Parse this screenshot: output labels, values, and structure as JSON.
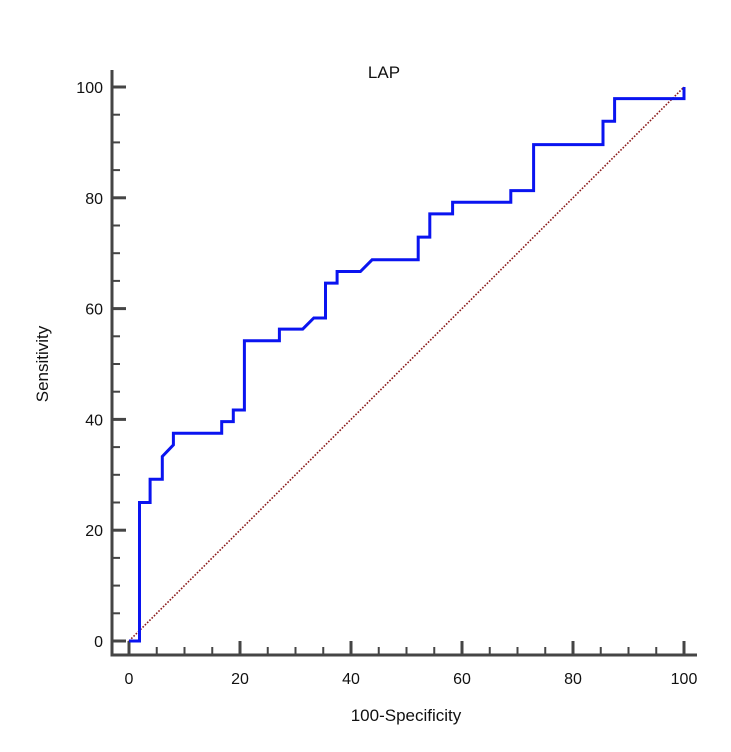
{
  "chart_data": {
    "type": "line",
    "title": "LAP",
    "xlabel": "100-Specificity",
    "ylabel": "Sensitivity",
    "xlim": [
      0,
      100
    ],
    "ylim": [
      0,
      100
    ],
    "xticks": [
      0,
      20,
      40,
      60,
      80,
      100
    ],
    "yticks": [
      0,
      20,
      40,
      60,
      80,
      100
    ],
    "minor_tick_step": 5,
    "grid": false,
    "series": [
      {
        "color": "#0a14f0",
        "style": "solid",
        "points": [
          [
            0,
            0
          ],
          [
            1.9,
            0
          ],
          [
            1.9,
            25
          ],
          [
            3.8,
            25
          ],
          [
            3.8,
            29.2
          ],
          [
            6,
            29.2
          ],
          [
            6,
            33.3
          ],
          [
            8,
            35.4
          ],
          [
            8,
            37.5
          ],
          [
            16.7,
            37.5
          ],
          [
            16.7,
            39.6
          ],
          [
            18.8,
            39.6
          ],
          [
            18.8,
            41.7
          ],
          [
            20.8,
            41.7
          ],
          [
            20.8,
            54.2
          ],
          [
            27.1,
            54.2
          ],
          [
            27.1,
            56.3
          ],
          [
            31.3,
            56.3
          ],
          [
            33.3,
            58.3
          ],
          [
            35.4,
            58.3
          ],
          [
            35.4,
            64.6
          ],
          [
            37.5,
            64.6
          ],
          [
            37.5,
            66.7
          ],
          [
            41.7,
            66.7
          ],
          [
            43.8,
            68.8
          ],
          [
            52.1,
            68.8
          ],
          [
            52.1,
            72.9
          ],
          [
            54.2,
            72.9
          ],
          [
            54.2,
            77.1
          ],
          [
            58.3,
            77.1
          ],
          [
            58.3,
            79.2
          ],
          [
            68.8,
            79.2
          ],
          [
            68.8,
            81.3
          ],
          [
            72.9,
            81.3
          ],
          [
            72.9,
            89.6
          ],
          [
            85.4,
            89.6
          ],
          [
            85.4,
            93.8
          ],
          [
            87.5,
            93.8
          ],
          [
            87.5,
            97.9
          ],
          [
            100,
            97.9
          ],
          [
            100,
            100
          ]
        ]
      },
      {
        "color": "#8b1a1a",
        "style": "dotted",
        "points": [
          [
            0,
            0
          ],
          [
            100,
            100
          ]
        ]
      }
    ]
  }
}
